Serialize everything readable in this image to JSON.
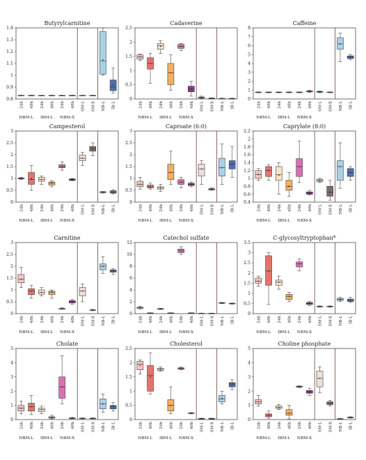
{
  "xlabels": [
    "24h",
    "48h",
    "24h",
    "48h",
    "24h",
    "48h",
    "SM-L",
    "SM-X",
    "NB-L",
    "IB-L"
  ],
  "groups": [
    "NBM-L",
    "IBM-L",
    "NBM-X"
  ],
  "colors": [
    "#f3c4c0",
    "#e3746c",
    "#fae2c6",
    "#f1b160",
    "#d970b4",
    "#8a3a8c",
    "#ebe0da",
    "#7a6f69",
    "#a8d2e8",
    "#4e6fb2"
  ],
  "chart_data": [
    {
      "type": "box",
      "title": "Butyrylcarnitine",
      "ylim": [
        0.8,
        1.4
      ],
      "ticks": [
        0.8,
        0.9,
        1.0,
        1.1,
        1.2,
        1.3,
        1.4
      ],
      "boxes": [
        [
          0.83,
          0.83,
          0.83,
          0.83,
          0.83,
          0.83
        ],
        [
          0.83,
          0.83,
          0.83,
          0.83,
          0.83,
          0.83
        ],
        [
          0.83,
          0.83,
          0.83,
          0.83,
          0.83,
          0.83
        ],
        [
          0.83,
          0.83,
          0.83,
          0.83,
          0.83,
          0.83
        ],
        [
          0.83,
          0.83,
          0.83,
          0.83,
          0.83,
          0.83
        ],
        [
          0.83,
          0.83,
          0.83,
          0.83,
          0.83,
          0.83
        ],
        [
          0.83,
          0.83,
          0.83,
          0.83,
          0.83,
          0.83
        ],
        [
          0.83,
          0.83,
          0.83,
          0.83,
          0.83,
          0.83
        ],
        [
          1.0,
          1.01,
          1.12,
          1.37,
          1.4,
          1.13
        ],
        [
          0.85,
          0.87,
          0.9,
          0.96,
          1.06,
          0.92
        ]
      ]
    },
    {
      "type": "box",
      "title": "Cadaverine",
      "ylim": [
        0,
        2.5
      ],
      "ticks": [
        0,
        0.5,
        1.0,
        1.5,
        2.0,
        2.5
      ],
      "boxes": [
        [
          1.35,
          1.4,
          1.48,
          1.55,
          1.58,
          1.48
        ],
        [
          0.55,
          1.05,
          1.25,
          1.45,
          1.6,
          1.25
        ],
        [
          1.6,
          1.75,
          1.88,
          1.95,
          2.05,
          1.85
        ],
        [
          0.3,
          0.5,
          0.92,
          1.25,
          1.55,
          0.92
        ],
        [
          1.7,
          1.78,
          1.85,
          1.92,
          1.95,
          1.85
        ],
        [
          0.1,
          0.25,
          0.35,
          0.45,
          0.62,
          0.35
        ],
        [
          0.02,
          0.03,
          0.05,
          0.07,
          0.1,
          0.05
        ],
        [
          0.01,
          0.02,
          0.02,
          0.03,
          0.04,
          0.02
        ],
        [
          0.01,
          0.01,
          0.02,
          0.02,
          0.03,
          0.02
        ],
        [
          0.01,
          0.01,
          0.01,
          0.02,
          0.03,
          0.01
        ]
      ]
    },
    {
      "type": "box",
      "title": "Caffeine",
      "ylim": [
        0,
        8
      ],
      "ticks": [
        0,
        1,
        2,
        3,
        4,
        5,
        6,
        7,
        8
      ],
      "boxes": [
        [
          0.7,
          0.72,
          0.75,
          0.78,
          0.8,
          0.75
        ],
        [
          0.7,
          0.72,
          0.75,
          0.78,
          0.8,
          0.75
        ],
        [
          0.7,
          0.72,
          0.75,
          0.78,
          0.8,
          0.75
        ],
        [
          0.7,
          0.72,
          0.75,
          0.78,
          0.8,
          0.75
        ],
        [
          0.7,
          0.72,
          0.75,
          0.78,
          0.8,
          0.75
        ],
        [
          0.75,
          0.8,
          0.85,
          0.9,
          1.0,
          0.85
        ],
        [
          0.7,
          0.75,
          0.8,
          0.85,
          0.9,
          0.8
        ],
        [
          0.7,
          0.72,
          0.75,
          0.78,
          0.8,
          0.75
        ],
        [
          4.2,
          5.6,
          6.2,
          6.9,
          7.4,
          6.2
        ],
        [
          4.4,
          4.55,
          4.7,
          4.85,
          5.0,
          4.7
        ]
      ]
    },
    {
      "type": "box",
      "title": "Campesterol",
      "ylim": [
        0,
        3.0
      ],
      "ticks": [
        0,
        0.5,
        1.0,
        1.5,
        2.0,
        2.5,
        3.0
      ],
      "boxes": [
        [
          0.95,
          0.98,
          1.0,
          1.02,
          1.05,
          1.0
        ],
        [
          0.5,
          0.75,
          0.95,
          1.25,
          1.55,
          0.98
        ],
        [
          0.75,
          0.88,
          0.95,
          1.05,
          1.1,
          0.95
        ],
        [
          0.65,
          0.72,
          0.8,
          0.85,
          0.9,
          0.8
        ],
        [
          1.35,
          1.45,
          1.5,
          1.58,
          1.7,
          1.5
        ],
        [
          0.9,
          0.92,
          0.95,
          0.98,
          1.0,
          0.95
        ],
        [
          1.55,
          1.75,
          1.85,
          1.98,
          2.1,
          1.85
        ],
        [
          1.95,
          2.15,
          2.25,
          2.35,
          2.5,
          2.25
        ],
        [
          0.38,
          0.4,
          0.42,
          0.44,
          0.45,
          0.42
        ],
        [
          0.35,
          0.38,
          0.42,
          0.48,
          0.52,
          0.42
        ]
      ]
    },
    {
      "type": "box",
      "title": "Caproate (6:0)",
      "ylim": [
        0,
        3.0
      ],
      "ticks": [
        0,
        0.5,
        1.0,
        1.5,
        2.0,
        2.5,
        3.0
      ],
      "boxes": [
        [
          0.55,
          0.65,
          0.75,
          0.88,
          1.05,
          0.75
        ],
        [
          0.55,
          0.6,
          0.65,
          0.72,
          0.8,
          0.65
        ],
        [
          0.45,
          0.55,
          0.6,
          0.65,
          0.75,
          0.6
        ],
        [
          0.75,
          0.95,
          1.25,
          1.6,
          2.15,
          1.25
        ],
        [
          0.6,
          0.75,
          0.85,
          0.95,
          1.05,
          0.85
        ],
        [
          0.65,
          0.7,
          0.75,
          0.8,
          0.85,
          0.75
        ],
        [
          0.75,
          1.1,
          1.4,
          1.6,
          1.75,
          1.4
        ],
        [
          0.5,
          0.52,
          0.55,
          0.57,
          0.6,
          0.55
        ],
        [
          0.75,
          1.1,
          1.45,
          1.85,
          2.45,
          1.45
        ],
        [
          1.05,
          1.4,
          1.6,
          1.75,
          2.35,
          1.6
        ]
      ]
    },
    {
      "type": "box",
      "title": "Caprylate (8:0)",
      "ylim": [
        0.4,
        2.2
      ],
      "ticks": [
        0.4,
        0.6,
        0.8,
        1.0,
        1.2,
        1.4,
        1.6,
        1.8,
        2.0,
        2.2
      ],
      "boxes": [
        [
          0.95,
          1.0,
          1.1,
          1.2,
          1.25,
          1.1
        ],
        [
          0.95,
          1.05,
          1.2,
          1.3,
          1.35,
          1.2
        ],
        [
          0.6,
          0.95,
          1.1,
          1.3,
          1.4,
          1.08
        ],
        [
          0.55,
          0.7,
          0.8,
          0.95,
          1.15,
          0.8
        ],
        [
          0.9,
          1.05,
          1.3,
          1.5,
          1.95,
          1.3
        ],
        [
          0.58,
          0.6,
          0.63,
          0.66,
          0.7,
          0.63
        ],
        [
          0.9,
          0.92,
          0.95,
          0.98,
          1.0,
          0.95
        ],
        [
          0.45,
          0.55,
          0.65,
          0.8,
          0.95,
          0.65
        ],
        [
          0.75,
          0.95,
          1.3,
          1.45,
          1.9,
          1.3
        ],
        [
          0.95,
          1.05,
          1.15,
          1.25,
          1.3,
          1.15
        ]
      ]
    },
    {
      "type": "box",
      "title": "Carnitine",
      "ylim": [
        0,
        3.0
      ],
      "ticks": [
        0,
        0.5,
        1.0,
        1.5,
        2.0,
        2.5,
        3.0
      ],
      "boxes": [
        [
          1.1,
          1.3,
          1.45,
          1.65,
          1.95,
          1.45
        ],
        [
          0.65,
          0.8,
          0.95,
          1.05,
          1.2,
          0.95
        ],
        [
          0.75,
          0.82,
          0.9,
          1.0,
          1.1,
          0.9
        ],
        [
          0.65,
          0.8,
          0.9,
          0.95,
          1.0,
          0.9
        ],
        [
          0.18,
          0.19,
          0.2,
          0.22,
          0.25,
          0.2
        ],
        [
          0.4,
          0.45,
          0.5,
          0.55,
          0.6,
          0.5
        ],
        [
          0.5,
          0.75,
          0.95,
          1.1,
          1.25,
          0.95
        ],
        [
          0.12,
          0.14,
          0.15,
          0.16,
          0.18,
          0.15
        ],
        [
          1.7,
          1.85,
          2.0,
          2.1,
          2.4,
          2.0
        ],
        [
          1.65,
          1.75,
          1.8,
          1.85,
          1.9,
          1.8
        ]
      ]
    },
    {
      "type": "box",
      "title": "Catechol sulfate",
      "ylim": [
        0,
        12
      ],
      "ticks": [
        0,
        2,
        4,
        6,
        8,
        10,
        12
      ],
      "boxes": [
        [
          0.8,
          0.9,
          1.0,
          1.1,
          1.2,
          1.0
        ],
        [
          0.05,
          0.08,
          0.1,
          0.12,
          0.15,
          0.1
        ],
        [
          0.7,
          0.75,
          0.8,
          0.85,
          0.9,
          0.8
        ],
        [
          0.05,
          0.08,
          0.1,
          0.12,
          0.15,
          0.1
        ],
        [
          10.0,
          10.3,
          10.6,
          10.9,
          11.3,
          10.6
        ],
        [
          0.05,
          0.08,
          0.1,
          0.12,
          0.15,
          0.1
        ],
        [
          0.02,
          0.03,
          0.05,
          0.06,
          0.08,
          0.05
        ],
        [
          0.02,
          0.03,
          0.05,
          0.06,
          0.08,
          0.05
        ],
        [
          1.7,
          1.75,
          1.8,
          1.85,
          1.9,
          1.8
        ],
        [
          1.6,
          1.65,
          1.7,
          1.75,
          1.8,
          1.7
        ]
      ]
    },
    {
      "type": "box",
      "title": "C-glycosyltryptophan*",
      "ylim": [
        0,
        3.5
      ],
      "ticks": [
        0,
        0.5,
        1.0,
        1.5,
        2.0,
        2.5,
        3.0,
        3.5
      ],
      "boxes": [
        [
          1.35,
          1.5,
          1.6,
          1.75,
          1.85,
          1.6
        ],
        [
          0.45,
          1.4,
          2.1,
          2.85,
          3.0,
          2.1
        ],
        [
          1.2,
          1.4,
          1.55,
          1.65,
          1.85,
          1.55
        ],
        [
          0.6,
          0.7,
          0.85,
          0.95,
          1.05,
          0.85
        ],
        [
          2.1,
          2.3,
          2.45,
          2.55,
          2.7,
          2.45
        ],
        [
          0.4,
          0.45,
          0.5,
          0.55,
          0.6,
          0.5
        ],
        [
          0.32,
          0.33,
          0.35,
          0.36,
          0.38,
          0.35
        ],
        [
          0.32,
          0.33,
          0.35,
          0.36,
          0.38,
          0.35
        ],
        [
          0.6,
          0.65,
          0.7,
          0.75,
          0.8,
          0.7
        ],
        [
          0.55,
          0.6,
          0.65,
          0.72,
          0.8,
          0.65
        ]
      ]
    },
    {
      "type": "box",
      "title": "Cholate",
      "ylim": [
        0,
        5
      ],
      "ticks": [
        0,
        1,
        2,
        3,
        4,
        5
      ],
      "boxes": [
        [
          0.4,
          0.6,
          0.8,
          1.0,
          1.3,
          0.8
        ],
        [
          0.35,
          0.6,
          0.9,
          1.15,
          1.7,
          0.9
        ],
        [
          0.4,
          0.55,
          0.7,
          0.8,
          0.95,
          0.7
        ],
        [
          0.05,
          0.1,
          0.15,
          0.2,
          0.3,
          0.15
        ],
        [
          1.1,
          1.5,
          2.3,
          3.0,
          4.5,
          2.3
        ],
        [
          0.05,
          0.07,
          0.1,
          0.12,
          0.15,
          0.1
        ],
        [
          0.05,
          0.06,
          0.08,
          0.1,
          0.12,
          0.08
        ],
        [
          0.05,
          0.06,
          0.08,
          0.1,
          0.12,
          0.08
        ],
        [
          0.5,
          0.75,
          1.1,
          1.45,
          1.8,
          1.1
        ],
        [
          0.6,
          0.75,
          0.9,
          1.0,
          1.2,
          0.9
        ]
      ]
    },
    {
      "type": "box",
      "title": "Cholesterol",
      "ylim": [
        0,
        2.5
      ],
      "ticks": [
        0,
        0.5,
        1.0,
        1.5,
        2.0,
        2.5
      ],
      "boxes": [
        [
          1.6,
          1.75,
          1.95,
          2.05,
          2.1,
          1.9
        ],
        [
          0.9,
          1.0,
          1.55,
          1.9,
          2.35,
          1.5
        ],
        [
          1.7,
          1.73,
          1.77,
          1.8,
          1.85,
          1.77
        ],
        [
          0.2,
          0.3,
          0.5,
          0.7,
          1.15,
          0.5
        ],
        [
          1.75,
          1.77,
          1.8,
          1.82,
          1.85,
          1.8
        ],
        [
          0.2,
          0.21,
          0.22,
          0.23,
          0.25,
          0.22
        ],
        [
          0.01,
          0.02,
          0.03,
          0.04,
          0.05,
          0.03
        ],
        [
          0.01,
          0.02,
          0.03,
          0.04,
          0.05,
          0.03
        ],
        [
          0.55,
          0.62,
          0.72,
          0.85,
          1.0,
          0.75
        ],
        [
          1.05,
          1.15,
          1.25,
          1.3,
          1.4,
          1.25
        ]
      ]
    },
    {
      "type": "box",
      "title": "Choline phosphate",
      "ylim": [
        0,
        5
      ],
      "ticks": [
        0,
        1,
        2,
        3,
        4,
        5
      ],
      "boxes": [
        [
          0.95,
          1.1,
          1.25,
          1.4,
          1.7,
          1.25
        ],
        [
          0.1,
          0.2,
          0.3,
          0.4,
          0.6,
          0.3
        ],
        [
          0.7,
          0.78,
          0.85,
          0.95,
          1.05,
          0.85
        ],
        [
          0.05,
          0.3,
          0.45,
          0.7,
          1.0,
          0.45
        ],
        [
          2.25,
          2.28,
          2.32,
          2.35,
          2.38,
          2.32
        ],
        [
          1.7,
          1.85,
          1.95,
          2.05,
          2.2,
          1.95
        ],
        [
          1.9,
          2.3,
          2.9,
          3.4,
          3.7,
          2.9
        ],
        [
          0.95,
          1.05,
          1.15,
          1.25,
          1.35,
          1.15
        ],
        [
          0.02,
          0.03,
          0.05,
          0.06,
          0.08,
          0.05
        ],
        [
          0.1,
          0.12,
          0.15,
          0.17,
          0.2,
          0.15
        ]
      ]
    }
  ]
}
